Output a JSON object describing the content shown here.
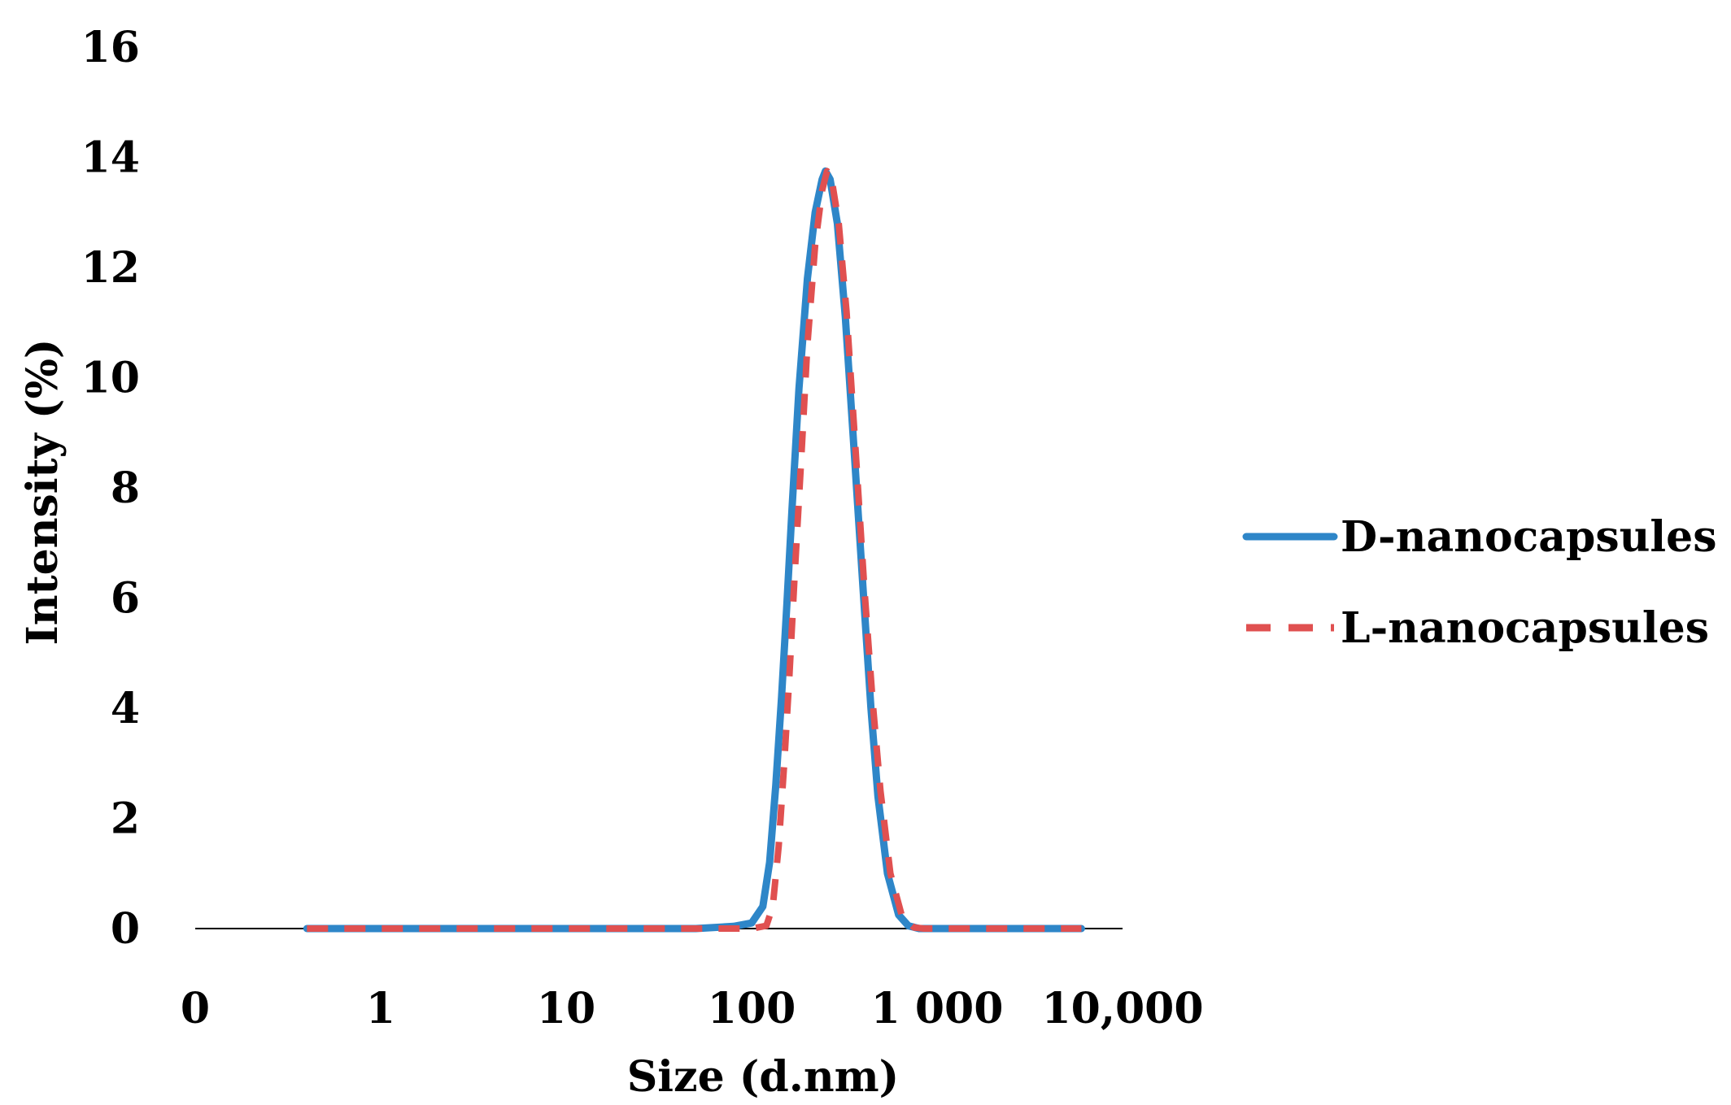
{
  "chart_data": {
    "type": "line",
    "title": "",
    "xlabel": "Size (d.nm)",
    "ylabel": "Intensity (%)",
    "x_scale": "log",
    "xlim": [
      0.1,
      10000
    ],
    "ylim": [
      0,
      16
    ],
    "y_ticks": [
      0,
      2,
      4,
      6,
      8,
      10,
      12,
      14,
      16
    ],
    "x_tick_labels": [
      {
        "value": 0.1,
        "label": "0"
      },
      {
        "value": 1,
        "label": "1"
      },
      {
        "value": 10,
        "label": "10"
      },
      {
        "value": 100,
        "label": "100"
      },
      {
        "value": 1000,
        "label": "1 000"
      },
      {
        "value": 10000,
        "label": "10,000"
      }
    ],
    "grid": false,
    "legend": "right",
    "series": [
      {
        "name": "D-nanocapsules",
        "color": "#2e86c8",
        "style": "solid",
        "points": [
          [
            0.4,
            0
          ],
          [
            1,
            0
          ],
          [
            10,
            0
          ],
          [
            50,
            0
          ],
          [
            80,
            0.04
          ],
          [
            100,
            0.1
          ],
          [
            115,
            0.4
          ],
          [
            125,
            1.2
          ],
          [
            135,
            2.6
          ],
          [
            145,
            4.2
          ],
          [
            155,
            5.9
          ],
          [
            165,
            7.6
          ],
          [
            180,
            9.8
          ],
          [
            200,
            11.8
          ],
          [
            220,
            13.0
          ],
          [
            240,
            13.6
          ],
          [
            250,
            13.75
          ],
          [
            265,
            13.6
          ],
          [
            290,
            12.8
          ],
          [
            320,
            11.1
          ],
          [
            360,
            8.5
          ],
          [
            400,
            6.1
          ],
          [
            440,
            4.0
          ],
          [
            480,
            2.4
          ],
          [
            540,
            1.0
          ],
          [
            620,
            0.25
          ],
          [
            700,
            0.05
          ],
          [
            800,
            0
          ],
          [
            1000,
            0
          ],
          [
            2000,
            0
          ],
          [
            6000,
            0
          ]
        ]
      },
      {
        "name": "L-nanocapsules",
        "color": "#e05050",
        "style": "dashed",
        "points": [
          [
            0.4,
            0
          ],
          [
            1,
            0
          ],
          [
            10,
            0
          ],
          [
            50,
            0
          ],
          [
            100,
            0
          ],
          [
            120,
            0.05
          ],
          [
            130,
            0.4
          ],
          [
            140,
            1.5
          ],
          [
            150,
            3.0
          ],
          [
            160,
            4.6
          ],
          [
            170,
            6.3
          ],
          [
            185,
            8.5
          ],
          [
            200,
            10.6
          ],
          [
            220,
            12.4
          ],
          [
            240,
            13.4
          ],
          [
            255,
            13.75
          ],
          [
            270,
            13.6
          ],
          [
            295,
            12.8
          ],
          [
            325,
            11.2
          ],
          [
            365,
            8.6
          ],
          [
            405,
            6.2
          ],
          [
            450,
            4.1
          ],
          [
            495,
            2.5
          ],
          [
            560,
            1.0
          ],
          [
            650,
            0.2
          ],
          [
            750,
            0.02
          ],
          [
            850,
            0
          ],
          [
            1000,
            0
          ],
          [
            2000,
            0
          ],
          [
            6000,
            0
          ]
        ]
      }
    ]
  }
}
